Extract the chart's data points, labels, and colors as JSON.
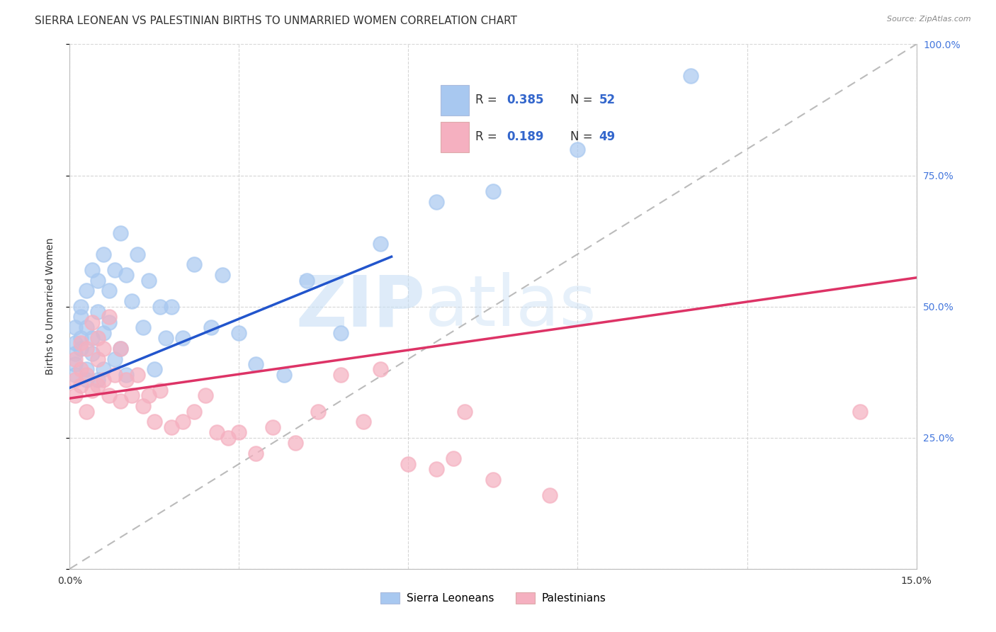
{
  "title": "SIERRA LEONEAN VS PALESTINIAN BIRTHS TO UNMARRIED WOMEN CORRELATION CHART",
  "source": "Source: ZipAtlas.com",
  "ylabel": "Births to Unmarried Women",
  "xlim": [
    0.0,
    0.15
  ],
  "ylim": [
    0.0,
    1.0
  ],
  "blue_color": "#a8c8f0",
  "pink_color": "#f5b0c0",
  "blue_line_color": "#2255cc",
  "pink_line_color": "#dd3366",
  "diag_line_color": "#aaaaaa",
  "legend_label1": "Sierra Leoneans",
  "legend_label2": "Palestinians",
  "title_fontsize": 11,
  "axis_label_fontsize": 10,
  "tick_fontsize": 10,
  "blue_x": [
    0.001,
    0.001,
    0.001,
    0.001,
    0.001,
    0.002,
    0.002,
    0.002,
    0.002,
    0.003,
    0.003,
    0.003,
    0.003,
    0.004,
    0.004,
    0.004,
    0.005,
    0.005,
    0.005,
    0.006,
    0.006,
    0.006,
    0.007,
    0.007,
    0.008,
    0.008,
    0.009,
    0.009,
    0.01,
    0.01,
    0.011,
    0.012,
    0.013,
    0.014,
    0.015,
    0.016,
    0.017,
    0.018,
    0.02,
    0.022,
    0.025,
    0.027,
    0.03,
    0.033,
    0.038,
    0.042,
    0.048,
    0.055,
    0.065,
    0.075,
    0.09,
    0.11
  ],
  "blue_y": [
    0.43,
    0.41,
    0.46,
    0.39,
    0.37,
    0.44,
    0.48,
    0.42,
    0.5,
    0.46,
    0.38,
    0.53,
    0.36,
    0.44,
    0.57,
    0.41,
    0.49,
    0.36,
    0.55,
    0.45,
    0.38,
    0.6,
    0.53,
    0.47,
    0.57,
    0.4,
    0.64,
    0.42,
    0.56,
    0.37,
    0.51,
    0.6,
    0.46,
    0.55,
    0.38,
    0.5,
    0.44,
    0.5,
    0.44,
    0.58,
    0.46,
    0.56,
    0.45,
    0.39,
    0.37,
    0.55,
    0.45,
    0.62,
    0.7,
    0.72,
    0.8,
    0.94
  ],
  "pink_x": [
    0.001,
    0.001,
    0.001,
    0.002,
    0.002,
    0.002,
    0.003,
    0.003,
    0.003,
    0.004,
    0.004,
    0.005,
    0.005,
    0.005,
    0.006,
    0.006,
    0.007,
    0.007,
    0.008,
    0.009,
    0.009,
    0.01,
    0.011,
    0.012,
    0.013,
    0.014,
    0.015,
    0.016,
    0.018,
    0.02,
    0.022,
    0.024,
    0.026,
    0.028,
    0.03,
    0.033,
    0.036,
    0.04,
    0.044,
    0.048,
    0.052,
    0.055,
    0.06,
    0.065,
    0.068,
    0.07,
    0.075,
    0.085,
    0.14
  ],
  "pink_y": [
    0.36,
    0.4,
    0.33,
    0.38,
    0.43,
    0.35,
    0.42,
    0.37,
    0.3,
    0.34,
    0.47,
    0.4,
    0.35,
    0.44,
    0.36,
    0.42,
    0.33,
    0.48,
    0.37,
    0.32,
    0.42,
    0.36,
    0.33,
    0.37,
    0.31,
    0.33,
    0.28,
    0.34,
    0.27,
    0.28,
    0.3,
    0.33,
    0.26,
    0.25,
    0.26,
    0.22,
    0.27,
    0.24,
    0.3,
    0.37,
    0.28,
    0.38,
    0.2,
    0.19,
    0.21,
    0.3,
    0.17,
    0.14,
    0.3
  ],
  "blue_line_x0": 0.0,
  "blue_line_x1": 0.057,
  "blue_line_y0": 0.345,
  "blue_line_y1": 0.595,
  "pink_line_x0": 0.0,
  "pink_line_x1": 0.15,
  "pink_line_y0": 0.325,
  "pink_line_y1": 0.555
}
